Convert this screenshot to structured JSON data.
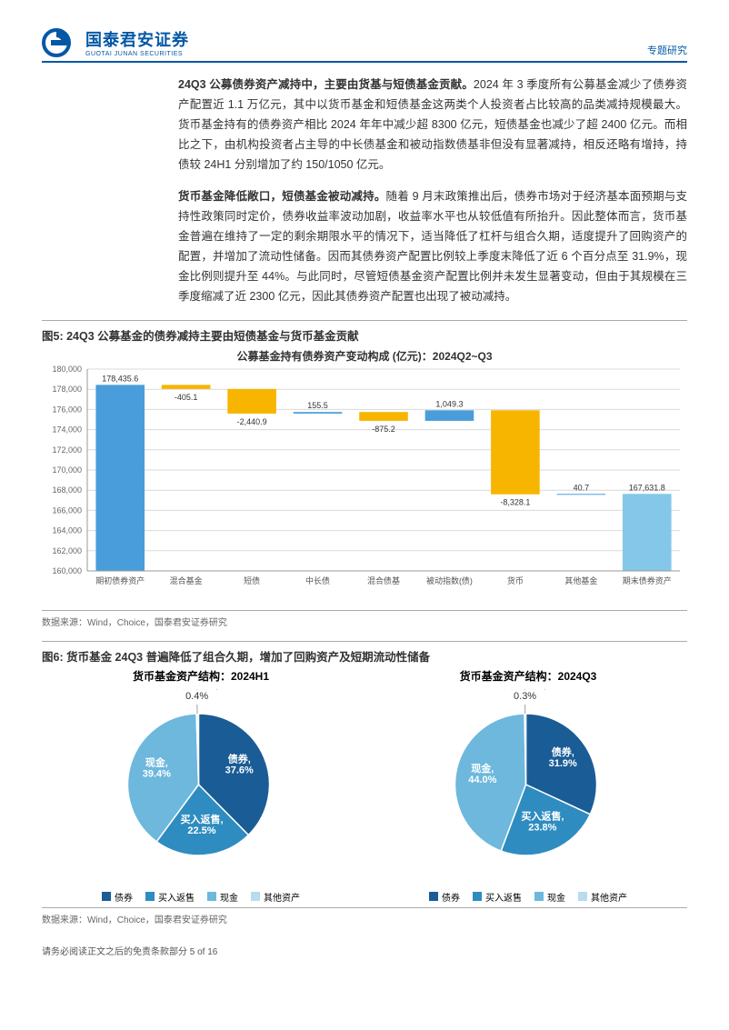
{
  "header": {
    "company_cn": "国泰君安证券",
    "company_en": "GUOTAI JUNAN SECURITIES",
    "tag": "专题研究"
  },
  "paragraph1": {
    "lead": "24Q3 公募债券资产减持中，主要由货基与短债基金贡献。",
    "rest": "2024 年 3 季度所有公募基金减少了债券资产配置近 1.1 万亿元，其中以货币基金和短债基金这两类个人投资者占比较高的品类减持规模最大。货币基金持有的债券资产相比 2024 年年中减少超 8300 亿元，短债基金也减少了超 2400 亿元。而相比之下，由机构投资者占主导的中长债基金和被动指数债基非但没有显著减持，相反还略有增持，持债较 24H1 分别增加了约 150/1050 亿元。"
  },
  "paragraph2": {
    "lead": "货币基金降低敞口，短债基金被动减持。",
    "rest": "随着 9 月末政策推出后，债券市场对于经济基本面预期与支持性政策同时定价，债券收益率波动加剧，收益率水平也从较低值有所抬升。因此整体而言，货币基金普遍在维持了一定的剩余期限水平的情况下，适当降低了杠杆与组合久期，适度提升了回购资产的配置，并增加了流动性储备。因而其债券资产配置比例较上季度末降低了近 6 个百分点至 31.9%，现金比例则提升至 44%。与此同时，尽管短债基金资产配置比例并未发生显著变动，但由于其规模在三季度缩减了近 2300 亿元，因此其债券资产配置也出现了被动减持。"
  },
  "fig5": {
    "title": "图5:  24Q3 公募基金的债券减持主要由短债基金与货币基金贡献",
    "chart_title": "公募基金持有债券资产变动构成 (亿元)：2024Q2~Q3",
    "categories": [
      "期初债券资产",
      "混合基金",
      "短债",
      "中长债",
      "混合债基",
      "被动指数(债)",
      "货币",
      "其他基金",
      "期末债券资产"
    ],
    "values": [
      178435.6,
      -405.1,
      -2440.9,
      155.5,
      -875.2,
      1049.3,
      -8328.1,
      40.7,
      167631.8
    ],
    "value_labels": [
      "178,435.6",
      "-405.1",
      "-2,440.9",
      "155.5",
      "-875.2",
      "1,049.3",
      "-8,328.1",
      "40.7",
      "167,631.8"
    ],
    "colors": [
      "#4a9ddb",
      "#f7b500",
      "#f7b500",
      "#4a9ddb",
      "#f7b500",
      "#4a9ddb",
      "#f7b500",
      "#4a9ddb",
      "#84c7e8"
    ],
    "ymin": 160000,
    "ymax": 180000,
    "ystep": 2000,
    "grid_color": "#d9d9d9",
    "axis_fontsize": 9,
    "label_fontsize": 9
  },
  "fig6": {
    "title": "图6:  货币基金 24Q3 普遍降低了组合久期，增加了回购资产及短期流动性储备",
    "left": {
      "title": "货币基金资产结构：2024H1",
      "slices": [
        {
          "name": "债券",
          "value": 37.6,
          "label": "债券,\n37.6%",
          "color": "#1a5c96"
        },
        {
          "name": "买入返售",
          "value": 22.5,
          "label": "买入返售,\n22.5%",
          "color": "#2e8cc0"
        },
        {
          "name": "现金",
          "value": 39.4,
          "label": "现金,\n39.4%",
          "color": "#6db8dc"
        },
        {
          "name": "其他资产",
          "value": 0.4,
          "label": "其他资产,\n0.4%",
          "color": "#b8dced"
        }
      ]
    },
    "right": {
      "title": "货币基金资产结构：2024Q3",
      "slices": [
        {
          "name": "债券",
          "value": 31.9,
          "label": "债券,\n31.9%",
          "color": "#1a5c96"
        },
        {
          "name": "买入返售",
          "value": 23.8,
          "label": "买入返售,\n23.8%",
          "color": "#2e8cc0"
        },
        {
          "name": "现金",
          "value": 44.0,
          "label": "现金,\n44.0%",
          "color": "#6db8dc"
        },
        {
          "name": "其他资产",
          "value": 0.3,
          "label": "其他资产,\n0.3%",
          "color": "#b8dced"
        }
      ]
    },
    "legend": [
      "债券",
      "买入返售",
      "现金",
      "其他资产"
    ],
    "legend_colors": [
      "#1a5c96",
      "#2e8cc0",
      "#6db8dc",
      "#b8dced"
    ]
  },
  "source": "数据来源：Wind，Choice，国泰君安证券研究",
  "footer": "请务必阅读正文之后的免责条款部分 5 of 16"
}
